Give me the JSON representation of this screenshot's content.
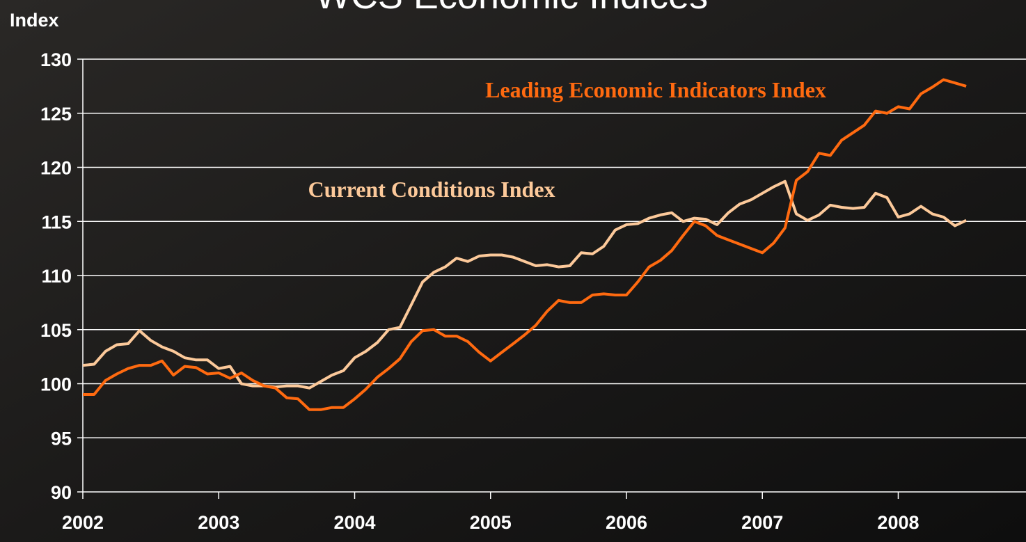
{
  "chart_data": {
    "type": "line",
    "title": "WCS Economic Indices",
    "y_label": "Index",
    "x": [
      2002.0,
      2002.083,
      2002.167,
      2002.25,
      2002.333,
      2002.417,
      2002.5,
      2002.583,
      2002.667,
      2002.75,
      2002.833,
      2002.917,
      2003.0,
      2003.083,
      2003.167,
      2003.25,
      2003.333,
      2003.417,
      2003.5,
      2003.583,
      2003.667,
      2003.75,
      2003.833,
      2003.917,
      2004.0,
      2004.083,
      2004.167,
      2004.25,
      2004.333,
      2004.417,
      2004.5,
      2004.583,
      2004.667,
      2004.75,
      2004.833,
      2004.917,
      2005.0,
      2005.083,
      2005.167,
      2005.25,
      2005.333,
      2005.417,
      2005.5,
      2005.583,
      2005.667,
      2005.75,
      2005.833,
      2005.917,
      2006.0,
      2006.083,
      2006.167,
      2006.25,
      2006.333,
      2006.417,
      2006.5,
      2006.583,
      2006.667,
      2006.75,
      2006.833,
      2006.917,
      2007.0,
      2007.083,
      2007.167,
      2007.25,
      2007.333,
      2007.417,
      2007.5,
      2007.583,
      2007.667,
      2007.75,
      2007.833,
      2007.917,
      2008.0,
      2008.083,
      2008.167,
      2008.25,
      2008.333,
      2008.417,
      2008.5
    ],
    "series": [
      {
        "name": "Current Conditions Index",
        "color": "#fcc99a",
        "values": [
          101.7,
          101.8,
          103.0,
          103.6,
          103.7,
          104.9,
          104.0,
          103.4,
          103.0,
          102.4,
          102.2,
          102.2,
          101.4,
          101.6,
          100.0,
          99.8,
          99.8,
          99.7,
          99.8,
          99.8,
          99.6,
          100.2,
          100.8,
          101.2,
          102.4,
          103.0,
          103.8,
          105.0,
          105.2,
          107.3,
          109.4,
          110.3,
          110.8,
          111.6,
          111.3,
          111.8,
          111.9,
          111.9,
          111.7,
          111.3,
          110.9,
          111.0,
          110.8,
          110.9,
          112.1,
          112.0,
          112.7,
          114.2,
          114.7,
          114.8,
          115.3,
          115.6,
          115.8,
          115.0,
          115.3,
          115.2,
          114.7,
          115.8,
          116.6,
          117.0,
          117.6,
          118.2,
          118.7,
          115.7,
          115.1,
          115.6,
          116.5,
          116.3,
          116.2,
          116.3,
          117.6,
          117.2,
          115.4,
          115.7,
          116.4,
          115.7,
          115.4,
          114.6,
          115.1
        ]
      },
      {
        "name": "Leading Economic Indicators Index",
        "color": "#ff6a10",
        "values": [
          99.0,
          99.0,
          100.3,
          100.9,
          101.4,
          101.7,
          101.7,
          102.1,
          100.8,
          101.6,
          101.5,
          100.9,
          101.0,
          100.5,
          101.0,
          100.3,
          99.8,
          99.6,
          98.7,
          98.6,
          97.6,
          97.6,
          97.8,
          97.8,
          98.6,
          99.5,
          100.6,
          101.4,
          102.3,
          103.9,
          104.9,
          105.0,
          104.4,
          104.4,
          103.9,
          102.9,
          102.1,
          102.9,
          103.7,
          104.5,
          105.4,
          106.7,
          107.7,
          107.5,
          107.5,
          108.2,
          108.3,
          108.2,
          108.2,
          109.4,
          110.8,
          111.4,
          112.3,
          113.7,
          115.0,
          114.6,
          113.7,
          113.3,
          112.9,
          112.5,
          112.1,
          113.0,
          114.4,
          118.8,
          119.6,
          121.3,
          121.1,
          122.5,
          123.2,
          123.9,
          125.2,
          125.0,
          125.6,
          125.4,
          126.8,
          127.4,
          128.1,
          127.8,
          127.5
        ]
      }
    ],
    "xlim": [
      2002,
      2008.94
    ],
    "ylim": [
      90,
      130
    ],
    "xticks": [
      2002,
      2003,
      2004,
      2005,
      2006,
      2007,
      2008
    ],
    "yticks": [
      90,
      95,
      100,
      105,
      110,
      115,
      120,
      125,
      130
    ],
    "grid": true
  }
}
